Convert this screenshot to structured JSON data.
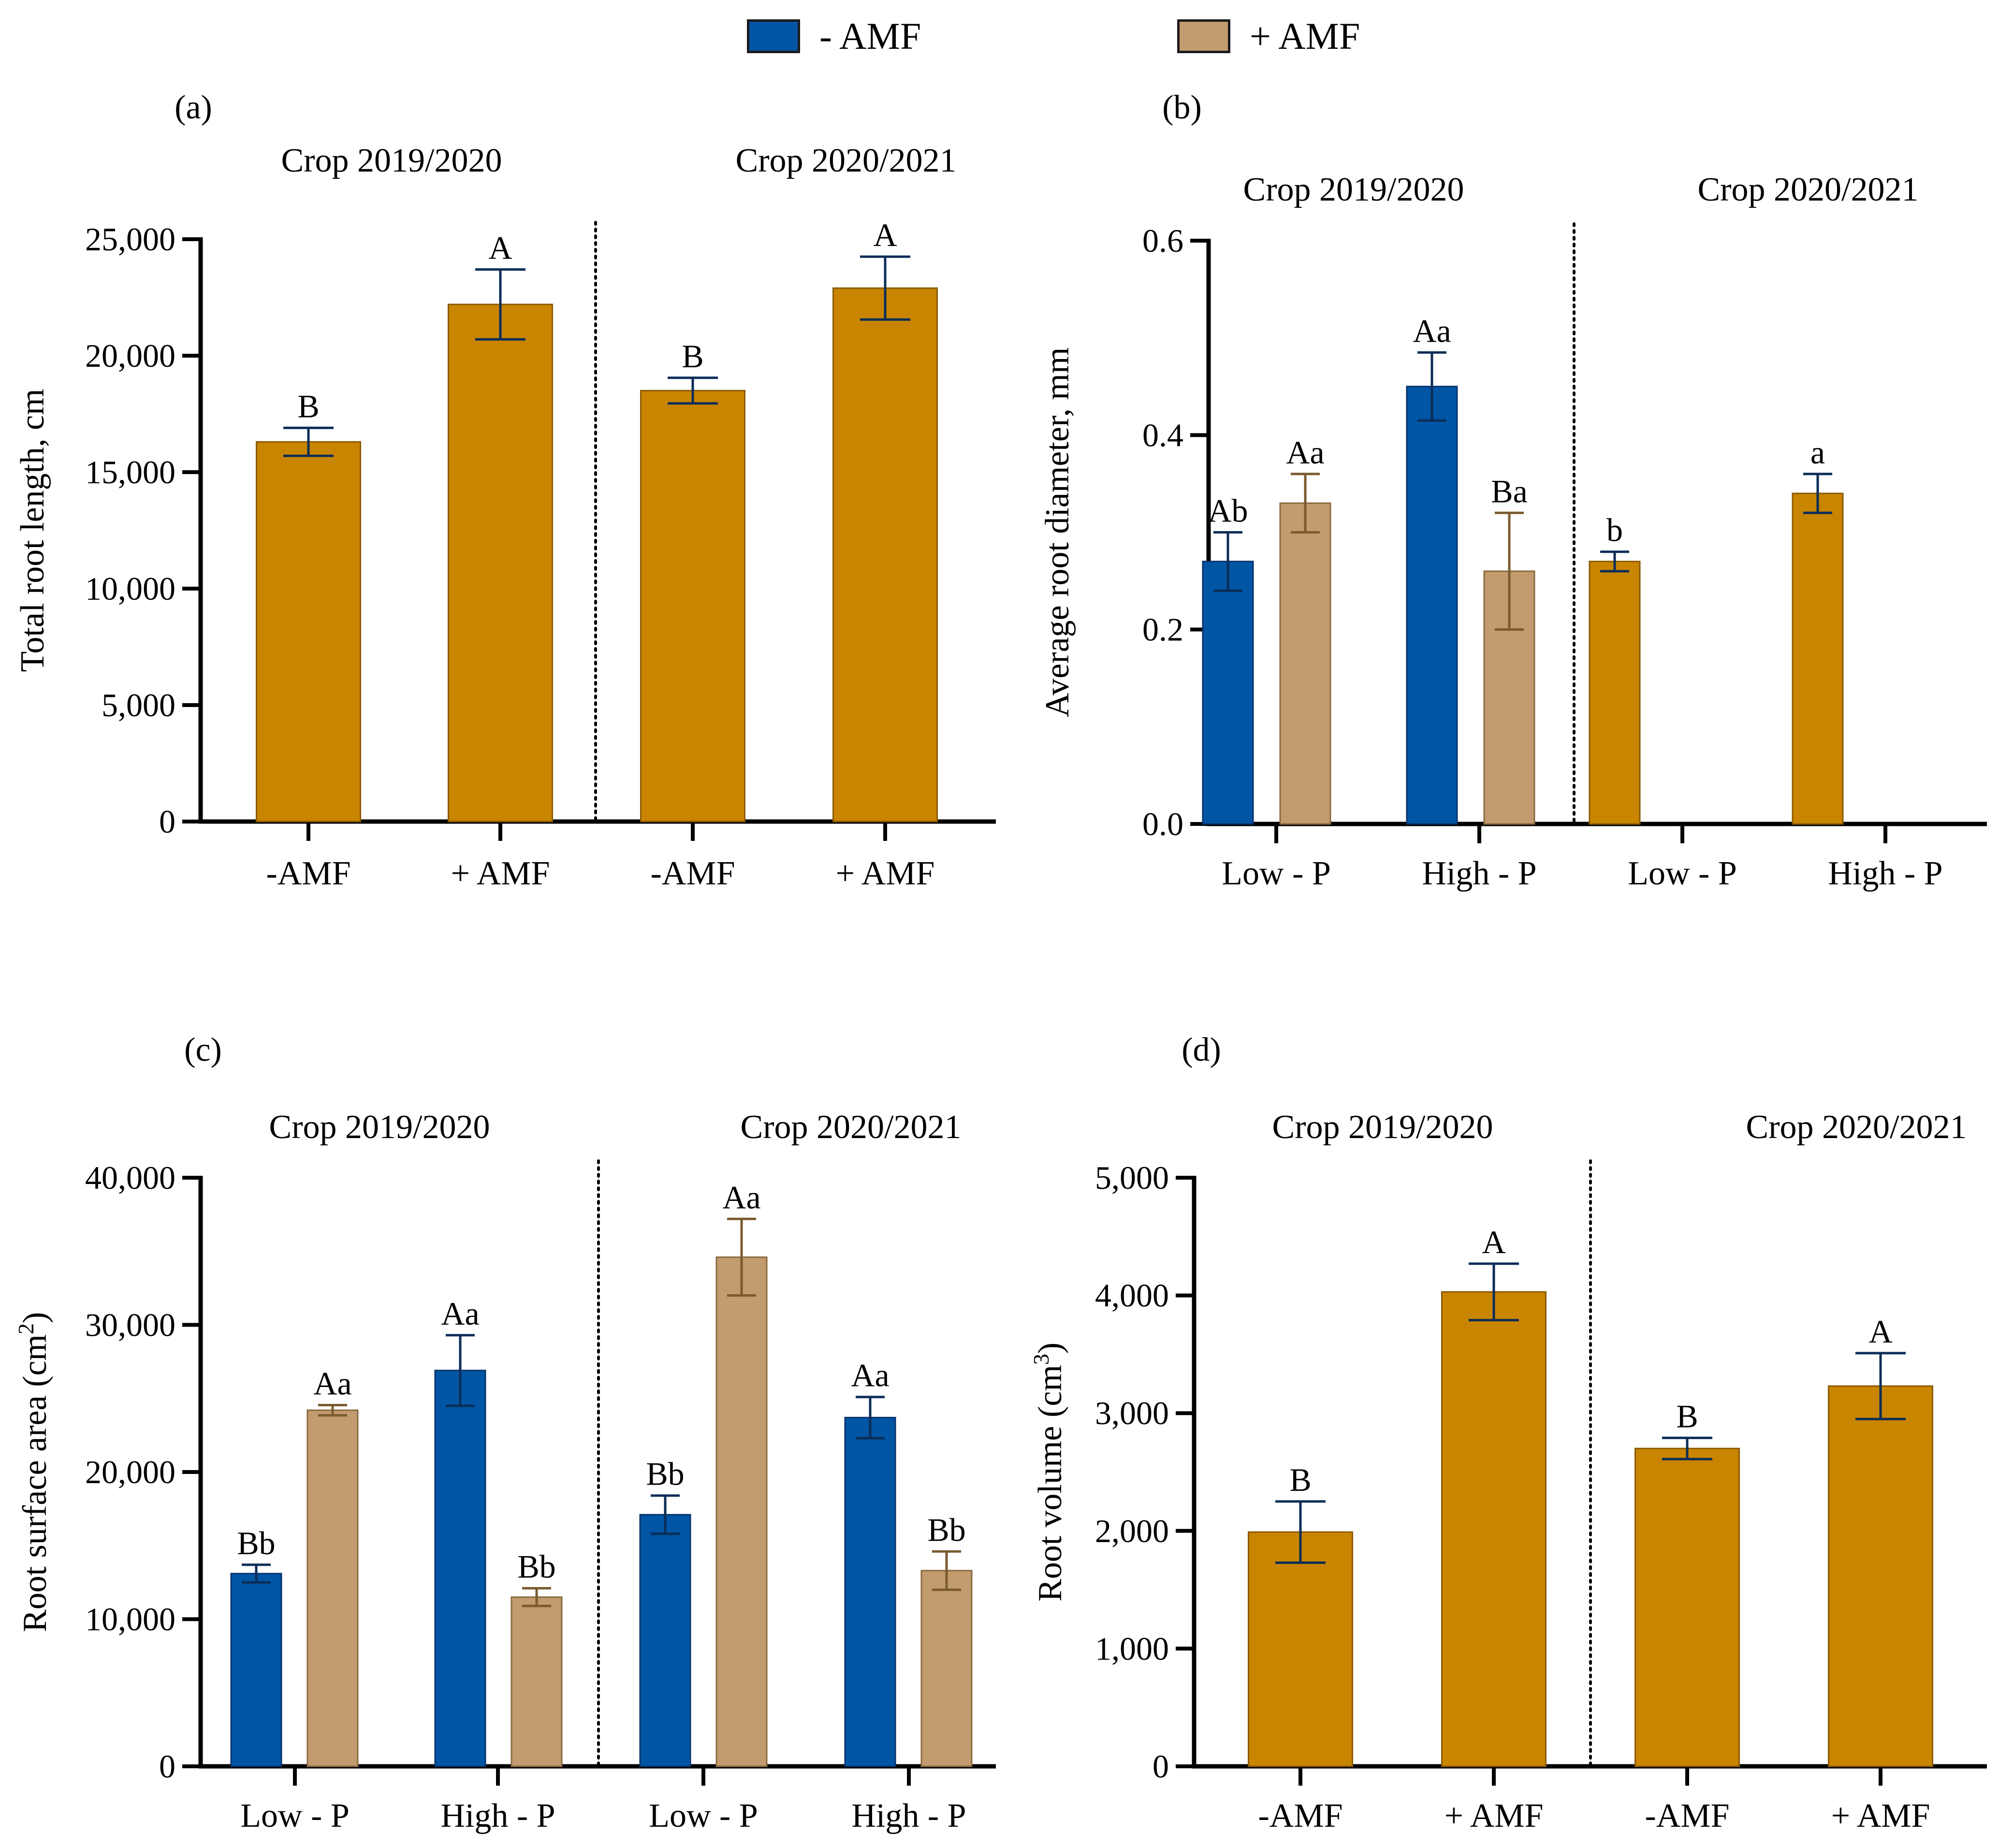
{
  "legend": [
    {
      "label": "- AMF",
      "color": "#0055A5"
    },
    {
      "label": "+ AMF",
      "color": "#C29C6E"
    }
  ],
  "colors": {
    "minus_amf": "#0055A5",
    "plus_amf": "#C29C6E",
    "pooled": "#C98500",
    "axis": "#000000"
  },
  "chart_data": [
    {
      "panel": "(a)",
      "type": "bar",
      "ylabel": "Total root length, cm",
      "ylim": [
        0,
        25000
      ],
      "yticks": [
        0,
        5000,
        10000,
        15000,
        20000,
        25000
      ],
      "ytick_labels": [
        "0",
        "5,000",
        "10,000",
        "15,000",
        "20,000",
        "25,000"
      ],
      "groups": [
        {
          "title": "Crop 2019/2020",
          "bars": [
            {
              "category": "-AMF",
              "value": 16300,
              "error": 600,
              "letter": "B",
              "color": "#C98500"
            },
            {
              "category": "+ AMF",
              "value": 22200,
              "error": 1500,
              "letter": "A",
              "color": "#C98500"
            }
          ]
        },
        {
          "title": "Crop 2020/2021",
          "bars": [
            {
              "category": "-AMF",
              "value": 18500,
              "error": 550,
              "letter": "B",
              "color": "#C98500"
            },
            {
              "category": "+ AMF",
              "value": 22900,
              "error": 1350,
              "letter": "A",
              "color": "#C98500"
            }
          ]
        }
      ]
    },
    {
      "panel": "(b)",
      "type": "bar",
      "ylabel": "Average root diameter, mm",
      "ylim": [
        0,
        0.6
      ],
      "yticks": [
        0,
        0.2,
        0.4,
        0.6
      ],
      "ytick_labels": [
        "0.0",
        "0.2",
        "0.4",
        "0.6"
      ],
      "groups": [
        {
          "title": "Crop 2019/2020",
          "bars": [
            {
              "category": "Low - P",
              "series": "- AMF",
              "value": 0.27,
              "error": 0.03,
              "letter": "Ab",
              "color": "#0055A5"
            },
            {
              "category": "Low - P",
              "series": "+ AMF",
              "value": 0.33,
              "error": 0.03,
              "letter": "Aa",
              "color": "#C29C6E"
            },
            {
              "category": "High - P",
              "series": "- AMF",
              "value": 0.45,
              "error": 0.035,
              "letter": "Aa",
              "color": "#0055A5"
            },
            {
              "category": "High - P",
              "series": "+ AMF",
              "value": 0.26,
              "error": 0.06,
              "letter": "Ba",
              "color": "#C29C6E"
            }
          ]
        },
        {
          "title": "Crop 2020/2021",
          "bars": [
            {
              "category": "Low - P",
              "value": 0.27,
              "error": 0.01,
              "letter": "b",
              "color": "#C98500"
            },
            {
              "category": "High - P",
              "value": 0.34,
              "error": 0.02,
              "letter": "a",
              "color": "#C98500"
            }
          ]
        }
      ]
    },
    {
      "panel": "(c)",
      "type": "bar",
      "ylabel_main": "Root surface area (cm",
      "ylabel_sup": "2",
      "ylabel_end": ")",
      "ylim": [
        0,
        40000
      ],
      "yticks": [
        0,
        10000,
        20000,
        30000,
        40000
      ],
      "ytick_labels": [
        "0",
        "10,000",
        "20,000",
        "30,000",
        "40,000"
      ],
      "groups": [
        {
          "title": "Crop 2019/2020",
          "bars": [
            {
              "category": "Low - P",
              "series": "- AMF",
              "value": 13100,
              "error": 600,
              "letter": "Bb",
              "color": "#0055A5"
            },
            {
              "category": "Low - P",
              "series": "+ AMF",
              "value": 24200,
              "error": 350,
              "letter": "Aa",
              "color": "#C29C6E"
            },
            {
              "category": "High - P",
              "series": "- AMF",
              "value": 26900,
              "error": 2400,
              "letter": "Aa",
              "color": "#0055A5"
            },
            {
              "category": "High - P",
              "series": "+ AMF",
              "value": 11500,
              "error": 600,
              "letter": "Bb",
              "color": "#C29C6E"
            }
          ]
        },
        {
          "title": "Crop 2020/2021",
          "bars": [
            {
              "category": "Low - P",
              "series": "- AMF",
              "value": 17100,
              "error": 1300,
              "letter": "Bb",
              "color": "#0055A5"
            },
            {
              "category": "Low - P",
              "series": "+ AMF",
              "value": 34600,
              "error": 2600,
              "letter": "Aa",
              "color": "#C29C6E"
            },
            {
              "category": "High - P",
              "series": "- AMF",
              "value": 23700,
              "error": 1400,
              "letter": "Aa",
              "color": "#0055A5"
            },
            {
              "category": "High - P",
              "series": "+ AMF",
              "value": 13300,
              "error": 1300,
              "letter": "Bb",
              "color": "#C29C6E"
            }
          ]
        }
      ]
    },
    {
      "panel": "(d)",
      "type": "bar",
      "ylabel_main": "Root volume (cm",
      "ylabel_sup": "3",
      "ylabel_end": ")",
      "ylim": [
        0,
        5000
      ],
      "yticks": [
        0,
        1000,
        2000,
        3000,
        4000,
        5000
      ],
      "ytick_labels": [
        "0",
        "1,000",
        "2,000",
        "3,000",
        "4,000",
        "5,000"
      ],
      "groups": [
        {
          "title": "Crop 2019/2020",
          "bars": [
            {
              "category": "-AMF",
              "value": 1990,
              "error": 260,
              "letter": "B",
              "color": "#C98500"
            },
            {
              "category": "+ AMF",
              "value": 4030,
              "error": 240,
              "letter": "A",
              "color": "#C98500"
            }
          ]
        },
        {
          "title": "Crop 2020/2021",
          "bars": [
            {
              "category": "-AMF",
              "value": 2700,
              "error": 90,
              "letter": "B",
              "color": "#C98500"
            },
            {
              "category": "+ AMF",
              "value": 3230,
              "error": 280,
              "letter": "A",
              "color": "#C98500"
            }
          ]
        }
      ]
    }
  ]
}
